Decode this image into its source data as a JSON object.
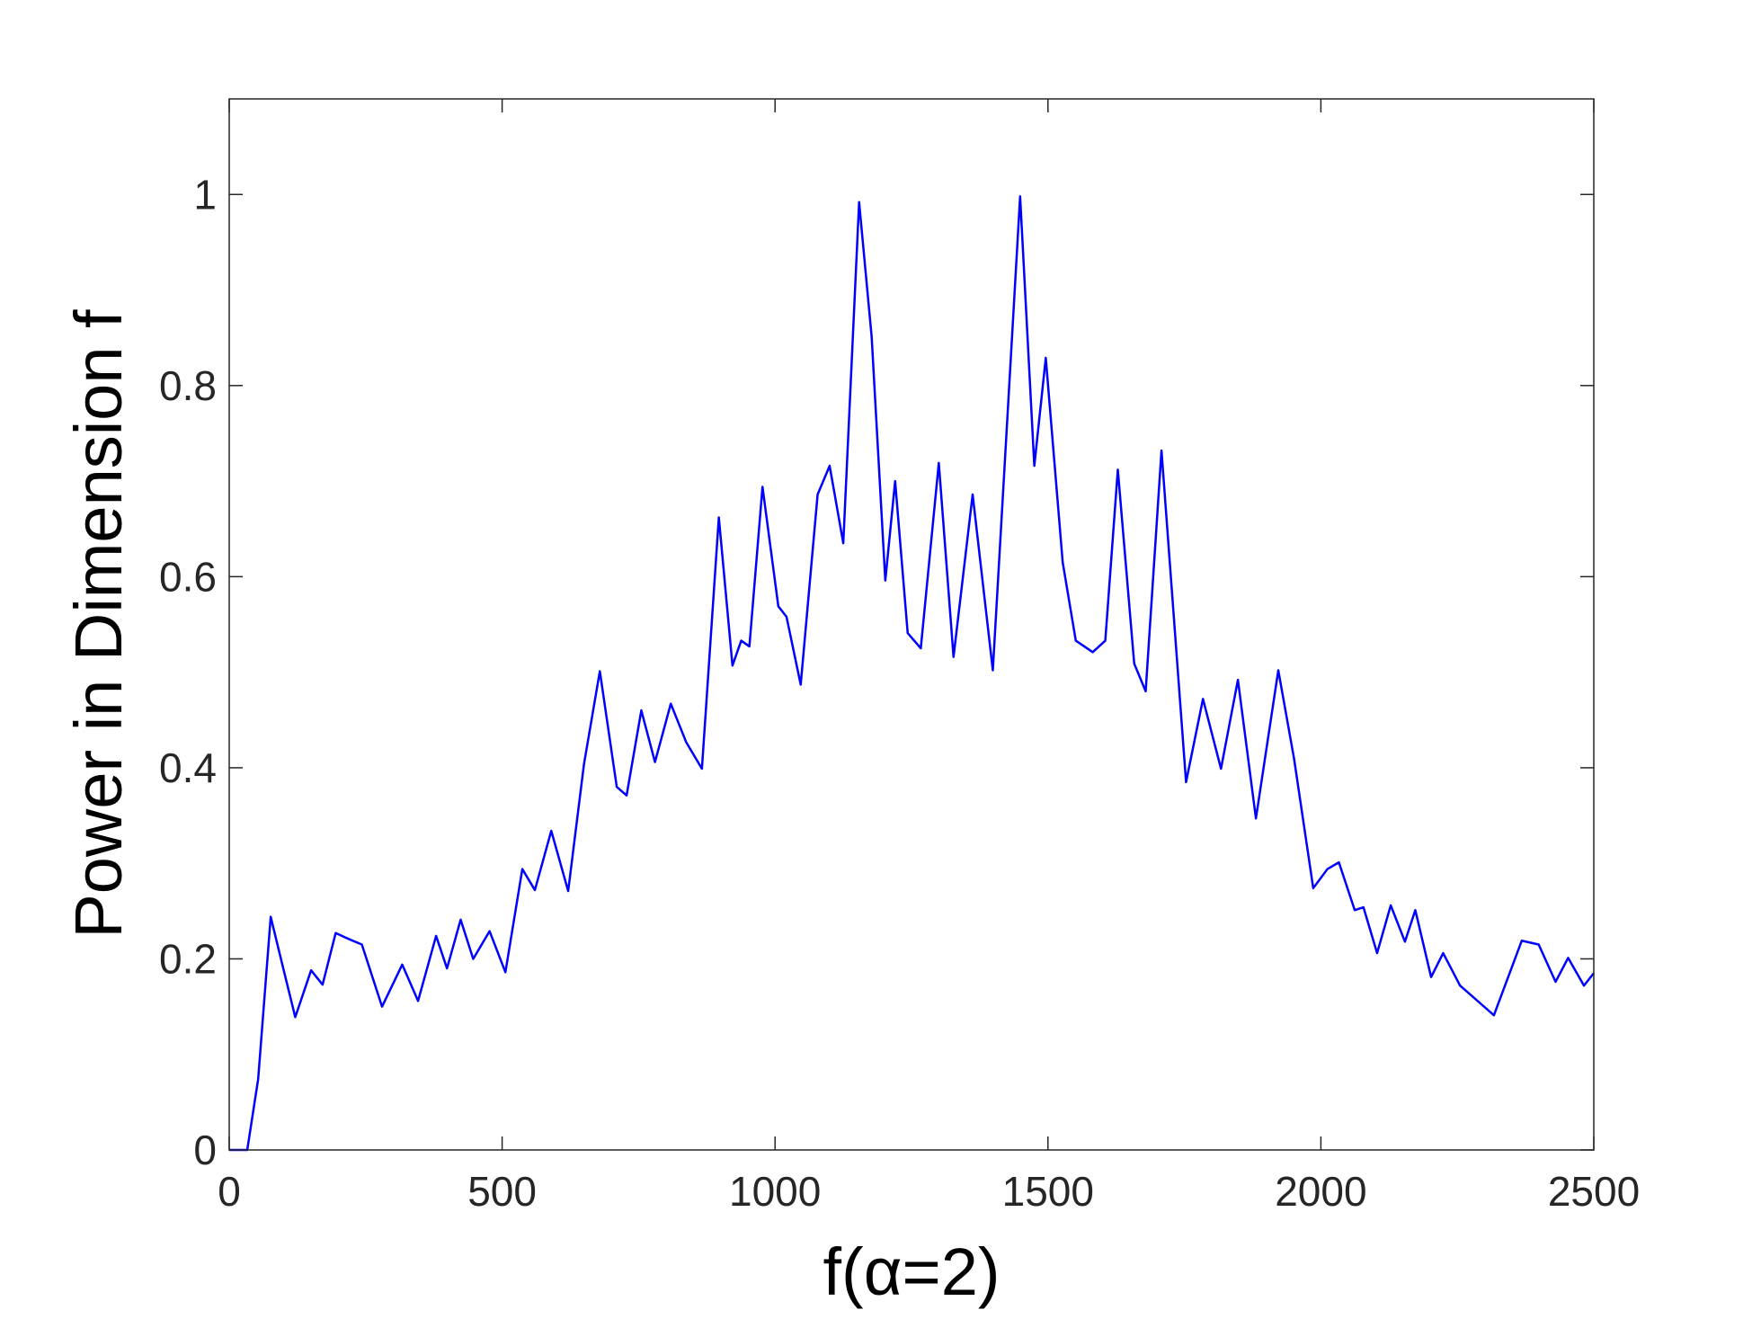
{
  "chart_data": {
    "type": "line",
    "xlabel": "f(α=2)",
    "ylabel": "Power in Dimension f",
    "xlim": [
      0,
      2500
    ],
    "ylim": [
      0,
      1.1
    ],
    "xticks": [
      0,
      500,
      1000,
      1500,
      2000,
      2500
    ],
    "yticks": [
      0,
      0.2,
      0.4,
      0.6,
      0.8,
      1
    ],
    "x": [
      0,
      33,
      53,
      76,
      99,
      121,
      150,
      171,
      195,
      222,
      243,
      280,
      317,
      346,
      379,
      399,
      424,
      447,
      477,
      506,
      537,
      560,
      590,
      621,
      650,
      679,
      710,
      728,
      755,
      780,
      809,
      837,
      866,
      897,
      922,
      938,
      953,
      977,
      1006,
      1021,
      1047,
      1078,
      1100,
      1125,
      1154,
      1177,
      1202,
      1220,
      1243,
      1267,
      1300,
      1327,
      1362,
      1399,
      1449,
      1475,
      1496,
      1527,
      1551,
      1582,
      1605,
      1628,
      1658,
      1679,
      1708,
      1753,
      1784,
      1817,
      1848,
      1881,
      1922,
      1951,
      1986,
      2012,
      2033,
      2062,
      2078,
      2103,
      2128,
      2154,
      2173,
      2202,
      2224,
      2255,
      2317,
      2368,
      2399,
      2430,
      2453,
      2482,
      2500
    ],
    "series": [
      {
        "color": "#0000ff",
        "values": [
          0,
          0,
          0.074,
          0.244,
          0.19,
          0.139,
          0.188,
          0.173,
          0.227,
          0.22,
          0.215,
          0.15,
          0.194,
          0.156,
          0.224,
          0.19,
          0.241,
          0.2,
          0.229,
          0.186,
          0.294,
          0.272,
          0.334,
          0.271,
          0.404,
          0.501,
          0.38,
          0.371,
          0.46,
          0.406,
          0.467,
          0.427,
          0.399,
          0.662,
          0.507,
          0.533,
          0.527,
          0.694,
          0.569,
          0.558,
          0.487,
          0.686,
          0.716,
          0.635,
          0.992,
          0.851,
          0.596,
          0.7,
          0.541,
          0.525,
          0.719,
          0.516,
          0.686,
          0.502,
          0.998,
          0.716,
          0.829,
          0.615,
          0.533,
          0.521,
          0.533,
          0.712,
          0.509,
          0.48,
          0.732,
          0.385,
          0.472,
          0.399,
          0.492,
          0.347,
          0.502,
          0.409,
          0.274,
          0.294,
          0.301,
          0.251,
          0.254,
          0.206,
          0.256,
          0.218,
          0.251,
          0.181,
          0.206,
          0.172,
          0.141,
          0.219,
          0.215,
          0.176,
          0.201,
          0.172,
          0.185
        ]
      }
    ]
  }
}
